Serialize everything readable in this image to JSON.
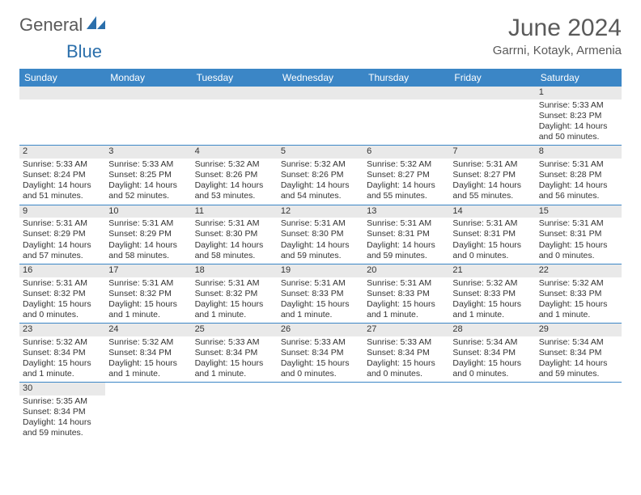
{
  "brand": {
    "general": "General",
    "blue": "Blue"
  },
  "header": {
    "month": "June 2024",
    "location": "Garrni, Kotayk, Armenia"
  },
  "colors": {
    "header_bg": "#3b86c6",
    "header_fg": "#ffffff",
    "daynum_bg": "#e9e9e9",
    "rule": "#3b86c6"
  },
  "weekdays": [
    "Sunday",
    "Monday",
    "Tuesday",
    "Wednesday",
    "Thursday",
    "Friday",
    "Saturday"
  ],
  "weeks": [
    [
      null,
      null,
      null,
      null,
      null,
      null,
      {
        "n": "1",
        "sr": "Sunrise: 5:33 AM",
        "ss": "Sunset: 8:23 PM",
        "dl": "Daylight: 14 hours and 50 minutes."
      }
    ],
    [
      {
        "n": "2",
        "sr": "Sunrise: 5:33 AM",
        "ss": "Sunset: 8:24 PM",
        "dl": "Daylight: 14 hours and 51 minutes."
      },
      {
        "n": "3",
        "sr": "Sunrise: 5:33 AM",
        "ss": "Sunset: 8:25 PM",
        "dl": "Daylight: 14 hours and 52 minutes."
      },
      {
        "n": "4",
        "sr": "Sunrise: 5:32 AM",
        "ss": "Sunset: 8:26 PM",
        "dl": "Daylight: 14 hours and 53 minutes."
      },
      {
        "n": "5",
        "sr": "Sunrise: 5:32 AM",
        "ss": "Sunset: 8:26 PM",
        "dl": "Daylight: 14 hours and 54 minutes."
      },
      {
        "n": "6",
        "sr": "Sunrise: 5:32 AM",
        "ss": "Sunset: 8:27 PM",
        "dl": "Daylight: 14 hours and 55 minutes."
      },
      {
        "n": "7",
        "sr": "Sunrise: 5:31 AM",
        "ss": "Sunset: 8:27 PM",
        "dl": "Daylight: 14 hours and 55 minutes."
      },
      {
        "n": "8",
        "sr": "Sunrise: 5:31 AM",
        "ss": "Sunset: 8:28 PM",
        "dl": "Daylight: 14 hours and 56 minutes."
      }
    ],
    [
      {
        "n": "9",
        "sr": "Sunrise: 5:31 AM",
        "ss": "Sunset: 8:29 PM",
        "dl": "Daylight: 14 hours and 57 minutes."
      },
      {
        "n": "10",
        "sr": "Sunrise: 5:31 AM",
        "ss": "Sunset: 8:29 PM",
        "dl": "Daylight: 14 hours and 58 minutes."
      },
      {
        "n": "11",
        "sr": "Sunrise: 5:31 AM",
        "ss": "Sunset: 8:30 PM",
        "dl": "Daylight: 14 hours and 58 minutes."
      },
      {
        "n": "12",
        "sr": "Sunrise: 5:31 AM",
        "ss": "Sunset: 8:30 PM",
        "dl": "Daylight: 14 hours and 59 minutes."
      },
      {
        "n": "13",
        "sr": "Sunrise: 5:31 AM",
        "ss": "Sunset: 8:31 PM",
        "dl": "Daylight: 14 hours and 59 minutes."
      },
      {
        "n": "14",
        "sr": "Sunrise: 5:31 AM",
        "ss": "Sunset: 8:31 PM",
        "dl": "Daylight: 15 hours and 0 minutes."
      },
      {
        "n": "15",
        "sr": "Sunrise: 5:31 AM",
        "ss": "Sunset: 8:31 PM",
        "dl": "Daylight: 15 hours and 0 minutes."
      }
    ],
    [
      {
        "n": "16",
        "sr": "Sunrise: 5:31 AM",
        "ss": "Sunset: 8:32 PM",
        "dl": "Daylight: 15 hours and 0 minutes."
      },
      {
        "n": "17",
        "sr": "Sunrise: 5:31 AM",
        "ss": "Sunset: 8:32 PM",
        "dl": "Daylight: 15 hours and 1 minute."
      },
      {
        "n": "18",
        "sr": "Sunrise: 5:31 AM",
        "ss": "Sunset: 8:32 PM",
        "dl": "Daylight: 15 hours and 1 minute."
      },
      {
        "n": "19",
        "sr": "Sunrise: 5:31 AM",
        "ss": "Sunset: 8:33 PM",
        "dl": "Daylight: 15 hours and 1 minute."
      },
      {
        "n": "20",
        "sr": "Sunrise: 5:31 AM",
        "ss": "Sunset: 8:33 PM",
        "dl": "Daylight: 15 hours and 1 minute."
      },
      {
        "n": "21",
        "sr": "Sunrise: 5:32 AM",
        "ss": "Sunset: 8:33 PM",
        "dl": "Daylight: 15 hours and 1 minute."
      },
      {
        "n": "22",
        "sr": "Sunrise: 5:32 AM",
        "ss": "Sunset: 8:33 PM",
        "dl": "Daylight: 15 hours and 1 minute."
      }
    ],
    [
      {
        "n": "23",
        "sr": "Sunrise: 5:32 AM",
        "ss": "Sunset: 8:34 PM",
        "dl": "Daylight: 15 hours and 1 minute."
      },
      {
        "n": "24",
        "sr": "Sunrise: 5:32 AM",
        "ss": "Sunset: 8:34 PM",
        "dl": "Daylight: 15 hours and 1 minute."
      },
      {
        "n": "25",
        "sr": "Sunrise: 5:33 AM",
        "ss": "Sunset: 8:34 PM",
        "dl": "Daylight: 15 hours and 1 minute."
      },
      {
        "n": "26",
        "sr": "Sunrise: 5:33 AM",
        "ss": "Sunset: 8:34 PM",
        "dl": "Daylight: 15 hours and 0 minutes."
      },
      {
        "n": "27",
        "sr": "Sunrise: 5:33 AM",
        "ss": "Sunset: 8:34 PM",
        "dl": "Daylight: 15 hours and 0 minutes."
      },
      {
        "n": "28",
        "sr": "Sunrise: 5:34 AM",
        "ss": "Sunset: 8:34 PM",
        "dl": "Daylight: 15 hours and 0 minutes."
      },
      {
        "n": "29",
        "sr": "Sunrise: 5:34 AM",
        "ss": "Sunset: 8:34 PM",
        "dl": "Daylight: 14 hours and 59 minutes."
      }
    ],
    [
      {
        "n": "30",
        "sr": "Sunrise: 5:35 AM",
        "ss": "Sunset: 8:34 PM",
        "dl": "Daylight: 14 hours and 59 minutes."
      },
      null,
      null,
      null,
      null,
      null,
      null
    ]
  ]
}
